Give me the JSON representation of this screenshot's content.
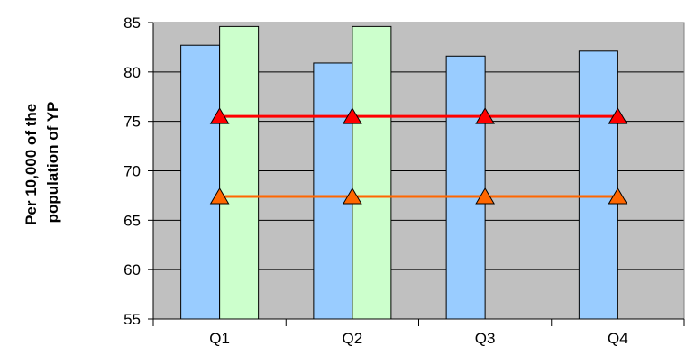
{
  "chart_data": {
    "type": "bar",
    "categories": [
      "Q1",
      "Q2",
      "Q3",
      "Q4"
    ],
    "ylim": [
      55,
      85
    ],
    "yticks": [
      55,
      60,
      65,
      70,
      75,
      80,
      85
    ],
    "ylabel_lines": [
      "Per 10,000 of the",
      "population of YP"
    ],
    "xlabel": "",
    "title": "",
    "grid": true,
    "plot_background": "#c0c0c0",
    "bar_series": [
      {
        "values": [
          82.7,
          80.9,
          81.6,
          82.1
        ],
        "color": "#99ccff"
      },
      {
        "values": [
          84.6,
          84.6,
          null,
          null
        ],
        "color": "#ccffcc"
      }
    ],
    "line_series": [
      {
        "values": [
          75.5,
          75.5,
          75.5,
          75.5
        ],
        "color": "#ff0000",
        "marker": "triangle"
      },
      {
        "values": [
          67.4,
          67.4,
          67.4,
          67.4
        ],
        "color": "#ff6600",
        "marker": "triangle"
      }
    ]
  }
}
